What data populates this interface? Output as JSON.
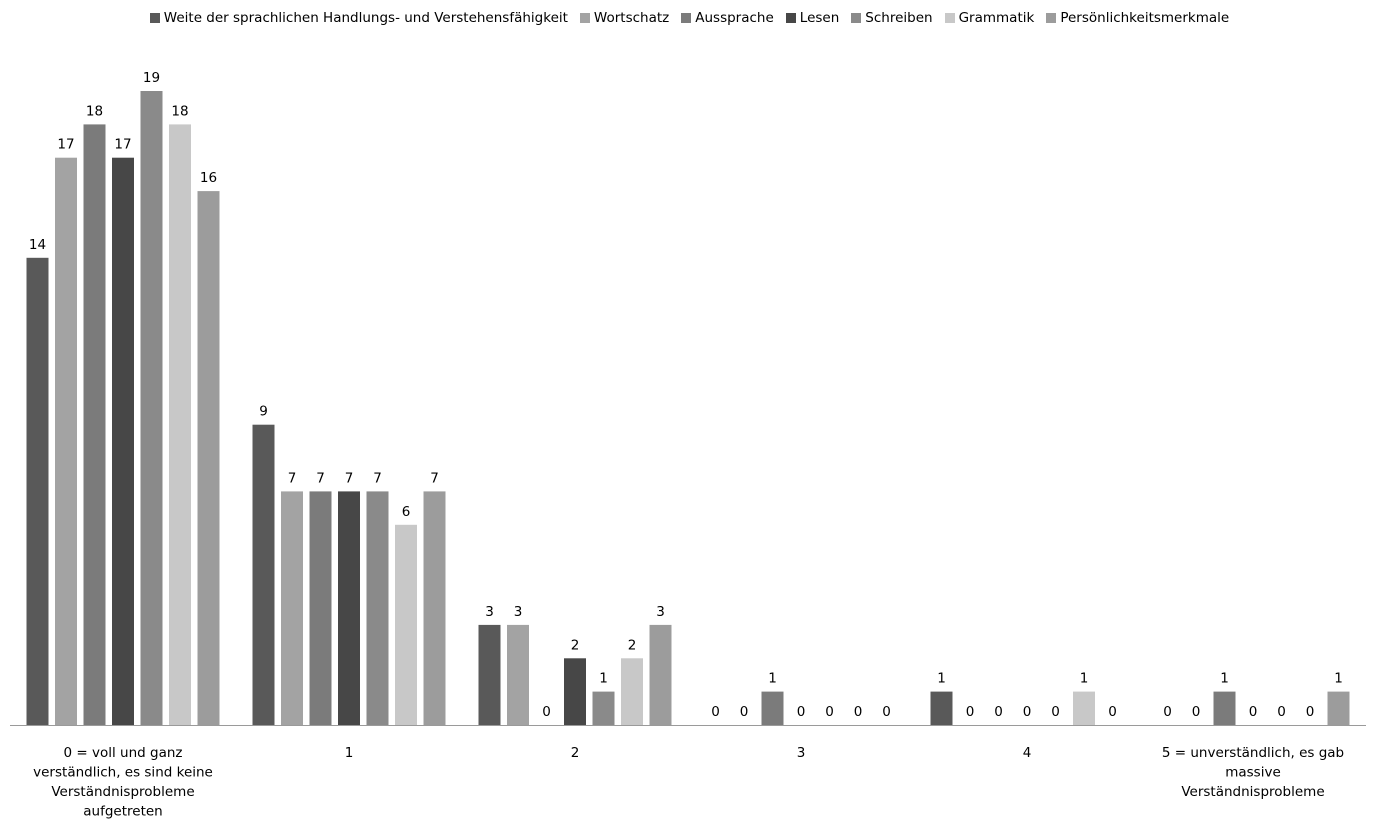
{
  "chart_data": {
    "type": "bar",
    "categories": [
      [
        "0 = voll und ganz",
        "verständlich, es sind keine",
        "Verständnisprobleme",
        "aufgetreten"
      ],
      [
        "1"
      ],
      [
        "2"
      ],
      [
        "3"
      ],
      [
        "4"
      ],
      [
        "5 = unverständlich, es gab",
        "massive",
        "Verständnisprobleme"
      ]
    ],
    "series": [
      {
        "name": "Weite der sprachlichen Handlungs- und Verstehensfähigkeit",
        "color": "#595959",
        "values": [
          14,
          9,
          3,
          0,
          1,
          0
        ]
      },
      {
        "name": "Wortschatz",
        "color": "#a3a3a3",
        "values": [
          17,
          7,
          3,
          0,
          0,
          0
        ]
      },
      {
        "name": "Aussprache",
        "color": "#7b7b7b",
        "values": [
          18,
          7,
          0,
          1,
          0,
          1
        ]
      },
      {
        "name": "Lesen",
        "color": "#474747",
        "values": [
          17,
          7,
          2,
          0,
          0,
          0
        ]
      },
      {
        "name": "Schreiben",
        "color": "#8a8a8a",
        "values": [
          19,
          7,
          1,
          0,
          0,
          0
        ]
      },
      {
        "name": "Grammatik",
        "color": "#c8c8c8",
        "values": [
          18,
          6,
          2,
          0,
          1,
          0
        ]
      },
      {
        "name": "Persönlichkeitsmerkmale",
        "color": "#9c9c9c",
        "values": [
          16,
          7,
          3,
          0,
          0,
          1
        ]
      }
    ],
    "ylim": [
      0,
      19
    ],
    "grid": false,
    "legend_position": "top",
    "data_labels": true
  }
}
